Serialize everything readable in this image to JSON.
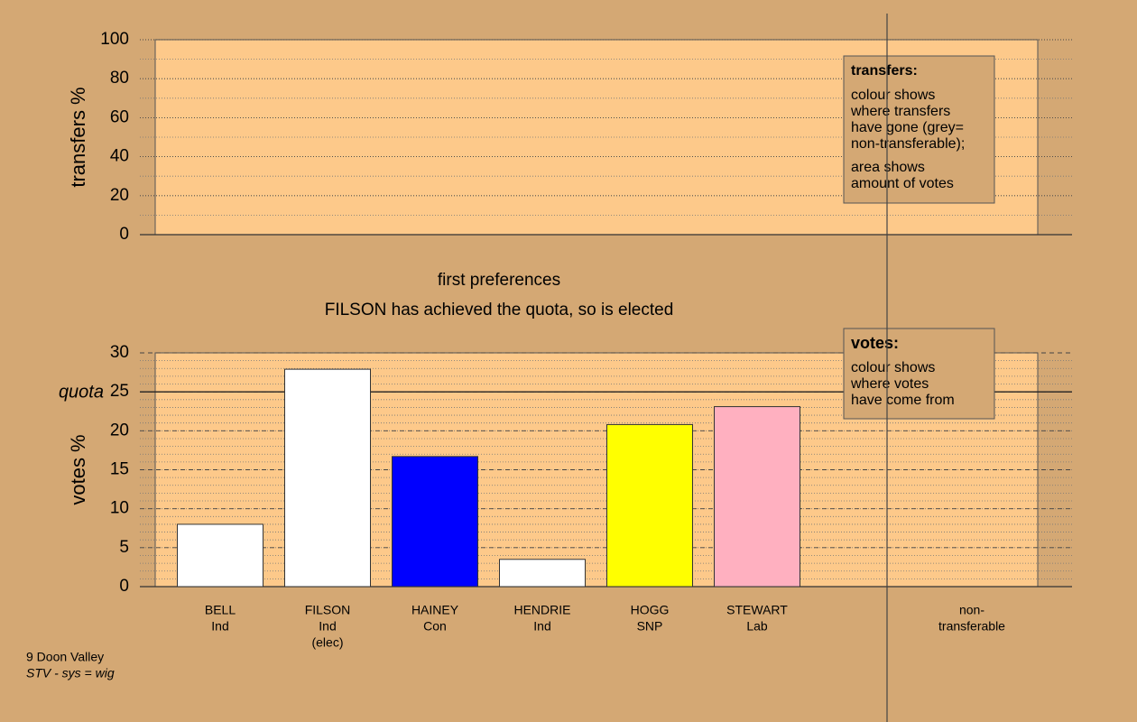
{
  "chart_data": [
    {
      "type": "bar",
      "ylabel": "transfers %",
      "ylim": [
        0,
        100
      ],
      "yticks": [
        0,
        20,
        40,
        60,
        80,
        100
      ],
      "minor_step": 10,
      "legend": {
        "title": "transfers:",
        "paragraphs": [
          [
            "colour shows",
            "where transfers",
            "have gone (grey=",
            "non-transferable);"
          ],
          [
            "area shows",
            "amount of votes"
          ]
        ]
      }
    },
    {
      "type": "bar",
      "title": "first preferences",
      "subtitle": "FILSON has achieved the quota, so is elected",
      "ylabel": "votes %",
      "ylim": [
        0,
        30
      ],
      "yticks": [
        0,
        5,
        10,
        15,
        20,
        25,
        30
      ],
      "minor_step": 1,
      "quota": {
        "label": "quota",
        "value": 25
      },
      "categories": [
        [
          "BELL",
          "Ind"
        ],
        [
          "FILSON",
          "Ind",
          "(elec)"
        ],
        [
          "HAINEY",
          "Con"
        ],
        [
          "HENDRIE",
          "Ind"
        ],
        [
          "HOGG",
          "SNP"
        ],
        [
          "STEWART",
          "Lab"
        ],
        [
          "non-",
          "transferable"
        ]
      ],
      "values": [
        8.0,
        27.9,
        16.7,
        3.5,
        20.8,
        23.1,
        null
      ],
      "colors": [
        "#ffffff",
        "#ffffff",
        "#0000ff",
        "#ffffff",
        "#ffff00",
        "#ffb0c0",
        null
      ],
      "legend": {
        "title": "votes:",
        "paragraphs": [
          [
            "colour shows",
            "where votes",
            "have come from"
          ]
        ]
      }
    }
  ],
  "footer": {
    "area": "9 Doon Valley",
    "system": "STV - sys = wig"
  }
}
